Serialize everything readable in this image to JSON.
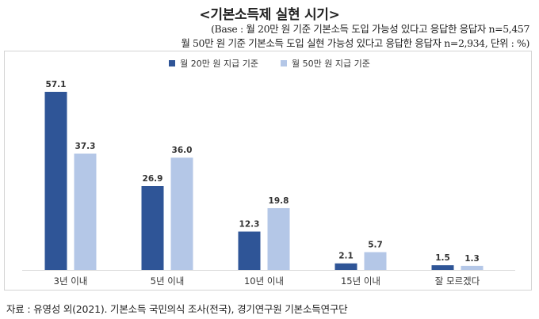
{
  "title": "<기본소득제 실현 시기>",
  "base_note": {
    "line1": "(Base : 월 20만 원 기준 기본소득 도입 가능성 있다고 응답한 응답자 n=5,457",
    "line2": "월 50만 원 기준 기본소득 도입 실현 가능성 있다고 응답한 응답자 n=2,934, 단위 : %)"
  },
  "source": "자료 : 유영성 외(2021). 기본소득 국민의식 조사(전국), 경기연구원 기본소득연구단",
  "chart_data": {
    "type": "bar",
    "categories": [
      "3년 이내",
      "5년 이내",
      "10년 이내",
      "15년 이내",
      "잘 모르겠다"
    ],
    "series": [
      {
        "name": "월 20만 원 지급 기준",
        "color": "#2f5597",
        "values": [
          57.1,
          26.9,
          12.3,
          2.1,
          1.5
        ]
      },
      {
        "name": "월 50만 원 지급 기준",
        "color": "#b4c7e7",
        "values": [
          37.3,
          36.0,
          19.8,
          5.7,
          1.3
        ]
      }
    ],
    "ylim": [
      0,
      60
    ],
    "grid": false,
    "legend_position": "top",
    "value_labels": [
      "57.1",
      "26.9",
      "12.3",
      "2.1",
      "1.5",
      "37.3",
      "36.0",
      "19.8",
      "5.7",
      "1.3"
    ]
  }
}
